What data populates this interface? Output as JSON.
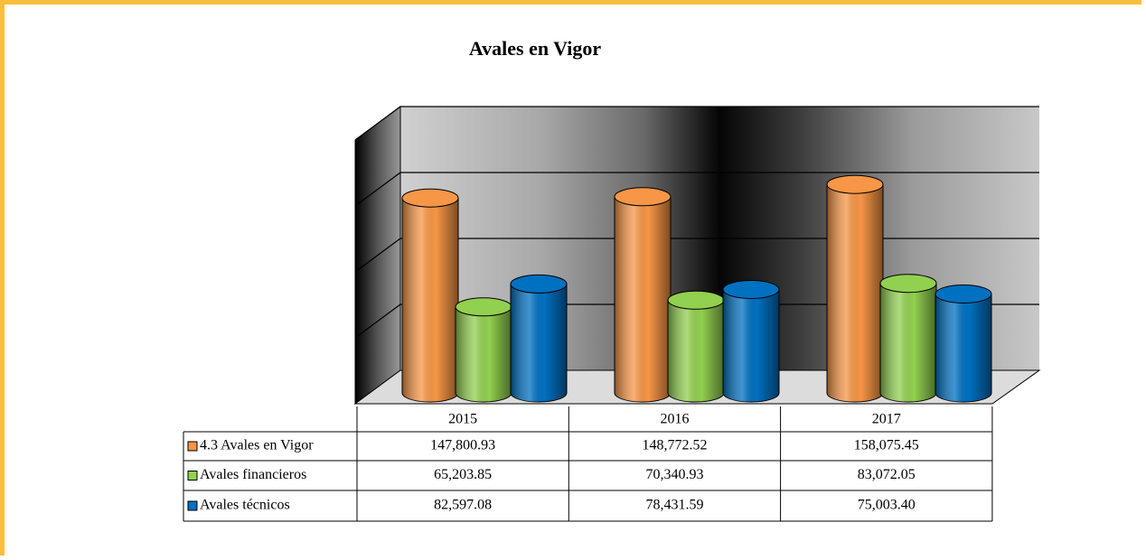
{
  "chart_data": {
    "type": "bar3d",
    "title": "Avales en Vigor",
    "categories": [
      "2015",
      "2016",
      "2017"
    ],
    "series": [
      {
        "name": "4.3 Avales en Vigor",
        "color": "#f79646",
        "values": [
          147800.93,
          148772.52,
          158075.45
        ],
        "value_labels": [
          "147,800.93",
          "148,772.52",
          "158,075.45"
        ]
      },
      {
        "name": "Avales financieros",
        "color": "#92d050",
        "values": [
          65203.85,
          70340.93,
          83072.05
        ],
        "value_labels": [
          "65,203.85",
          "70,340.93",
          "83,072.05"
        ]
      },
      {
        "name": "Avales técnicos",
        "color": "#0070c0",
        "values": [
          82597.08,
          78431.59,
          75003.4
        ],
        "value_labels": [
          "82,597.08",
          "78,431.59",
          "75,003.40"
        ]
      }
    ],
    "ylim": [
      0,
      200000
    ],
    "yticks": [
      0,
      50000,
      100000,
      150000,
      200000
    ],
    "grid": true
  }
}
